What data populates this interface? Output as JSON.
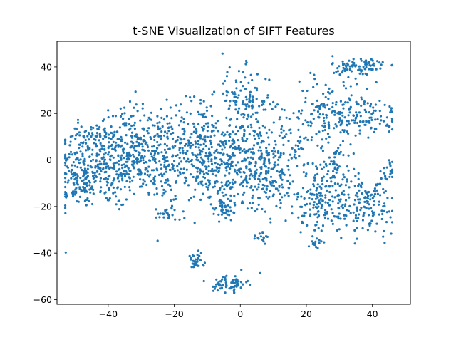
{
  "chart_data": {
    "type": "scatter",
    "title": "t-SNE Visualization of SIFT Features",
    "xlabel": "",
    "ylabel": "",
    "xlim": [
      -55.5,
      51.5
    ],
    "ylim": [
      -62,
      51
    ],
    "xticks": [
      -40,
      -20,
      0,
      20,
      40
    ],
    "yticks": [
      -60,
      -40,
      -20,
      0,
      20,
      40
    ],
    "xtick_labels": [
      "−40",
      "−20",
      "0",
      "20",
      "40"
    ],
    "ytick_labels": [
      "−60",
      "−40",
      "−20",
      "0",
      "20",
      "40"
    ],
    "grid": false,
    "legend": "none",
    "marker_color": "#1f77b4",
    "approx_point_count": 2200,
    "series": [
      {
        "values": [],
        "clusters": [
          {
            "cx": -42,
            "cy": -2,
            "sx": 7,
            "sy": 9,
            "n": 260
          },
          {
            "cx": -31,
            "cy": 4,
            "sx": 6,
            "sy": 10,
            "n": 230
          },
          {
            "cx": -22,
            "cy": 0,
            "sx": 6,
            "sy": 9,
            "n": 200
          },
          {
            "cx": -48,
            "cy": -8,
            "sx": 3,
            "sy": 6,
            "n": 70
          },
          {
            "cx": -45,
            "cy": 10,
            "sx": 4,
            "sy": 3,
            "n": 60
          },
          {
            "cx": -12,
            "cy": 8,
            "sx": 4,
            "sy": 11,
            "n": 150
          },
          {
            "cx": -5,
            "cy": -4,
            "sx": 5,
            "sy": 9,
            "n": 170
          },
          {
            "cx": 4,
            "cy": 2,
            "sx": 4,
            "sy": 10,
            "n": 150
          },
          {
            "cx": 1,
            "cy": 25,
            "sx": 4,
            "sy": 7,
            "n": 120
          },
          {
            "cx": 10,
            "cy": -8,
            "sx": 4,
            "sy": 8,
            "n": 110
          },
          {
            "cx": 15,
            "cy": 5,
            "sx": 5,
            "sy": 12,
            "n": 80
          },
          {
            "cx": 27,
            "cy": 20,
            "sx": 5,
            "sy": 7,
            "n": 140
          },
          {
            "cx": 38,
            "cy": 19,
            "sx": 5,
            "sy": 4,
            "n": 90
          },
          {
            "cx": 36,
            "cy": 40,
            "sx": 4,
            "sy": 2.5,
            "n": 90
          },
          {
            "cx": 25,
            "cy": -18,
            "sx": 4,
            "sy": 6,
            "n": 140
          },
          {
            "cx": 38,
            "cy": -20,
            "sx": 5,
            "sy": 6,
            "n": 140
          },
          {
            "cx": 28,
            "cy": -4,
            "sx": 3,
            "sy": 5,
            "n": 60
          },
          {
            "cx": -3,
            "cy": -53,
            "sx": 2.5,
            "sy": 2,
            "n": 70
          },
          {
            "cx": -13.5,
            "cy": -44,
            "sx": 1.2,
            "sy": 1.8,
            "n": 35
          },
          {
            "cx": -5,
            "cy": -21,
            "sx": 2,
            "sy": 3,
            "n": 40
          },
          {
            "cx": -22,
            "cy": -23,
            "sx": 2,
            "sy": 1.5,
            "n": 25
          },
          {
            "cx": 23,
            "cy": -36,
            "sx": 1.2,
            "sy": 1.2,
            "n": 15
          },
          {
            "cx": 7,
            "cy": -33,
            "sx": 1.2,
            "sy": 1.2,
            "n": 15
          },
          {
            "cx": -51,
            "cy": -14,
            "sx": 2,
            "sy": 1,
            "n": 20
          },
          {
            "cx": 44,
            "cy": -6,
            "sx": 2,
            "sy": 3,
            "n": 25
          }
        ]
      }
    ]
  }
}
